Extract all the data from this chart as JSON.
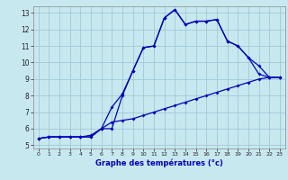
{
  "xlabel": "Graphe des températures (°c)",
  "xlim": [
    -0.5,
    23.5
  ],
  "ylim": [
    4.8,
    13.4
  ],
  "yticks": [
    5,
    6,
    7,
    8,
    9,
    10,
    11,
    12,
    13
  ],
  "xticks": [
    0,
    1,
    2,
    3,
    4,
    5,
    6,
    7,
    8,
    9,
    10,
    11,
    12,
    13,
    14,
    15,
    16,
    17,
    18,
    19,
    20,
    21,
    22,
    23
  ],
  "background_color": "#c8e8f0",
  "grid_color": "#a0c8d8",
  "line_color": "#0000bb",
  "line1_x": [
    0,
    1,
    2,
    3,
    4,
    5,
    6,
    7,
    8,
    9,
    10,
    11,
    12,
    13,
    14,
    15,
    16,
    17,
    18,
    19,
    20,
    21,
    22,
    23
  ],
  "line1_y": [
    5.4,
    5.5,
    5.5,
    5.5,
    5.5,
    5.5,
    6.0,
    6.0,
    8.0,
    9.5,
    10.9,
    11.0,
    12.7,
    13.2,
    12.3,
    12.5,
    12.5,
    12.6,
    11.3,
    11.0,
    10.3,
    9.3,
    9.1,
    9.1
  ],
  "line2_x": [
    0,
    1,
    2,
    3,
    4,
    5,
    6,
    7,
    8,
    9,
    10,
    11,
    12,
    13,
    14,
    15,
    16,
    17,
    18,
    19,
    20,
    21,
    22,
    23
  ],
  "line2_y": [
    5.4,
    5.5,
    5.5,
    5.5,
    5.5,
    5.5,
    6.0,
    7.3,
    8.1,
    9.5,
    10.9,
    11.0,
    12.7,
    13.2,
    12.3,
    12.5,
    12.5,
    12.6,
    11.3,
    11.0,
    10.3,
    9.8,
    9.1,
    9.1
  ],
  "line3_x": [
    0,
    1,
    2,
    3,
    4,
    5,
    6,
    7,
    8,
    9,
    10,
    11,
    12,
    13,
    14,
    15,
    16,
    17,
    18,
    19,
    20,
    21,
    22,
    23
  ],
  "line3_y": [
    5.4,
    5.5,
    5.5,
    5.5,
    5.5,
    5.6,
    6.0,
    6.4,
    6.5,
    6.6,
    6.8,
    7.0,
    7.2,
    7.4,
    7.6,
    7.8,
    8.0,
    8.2,
    8.4,
    8.6,
    8.8,
    9.0,
    9.1,
    9.1
  ]
}
